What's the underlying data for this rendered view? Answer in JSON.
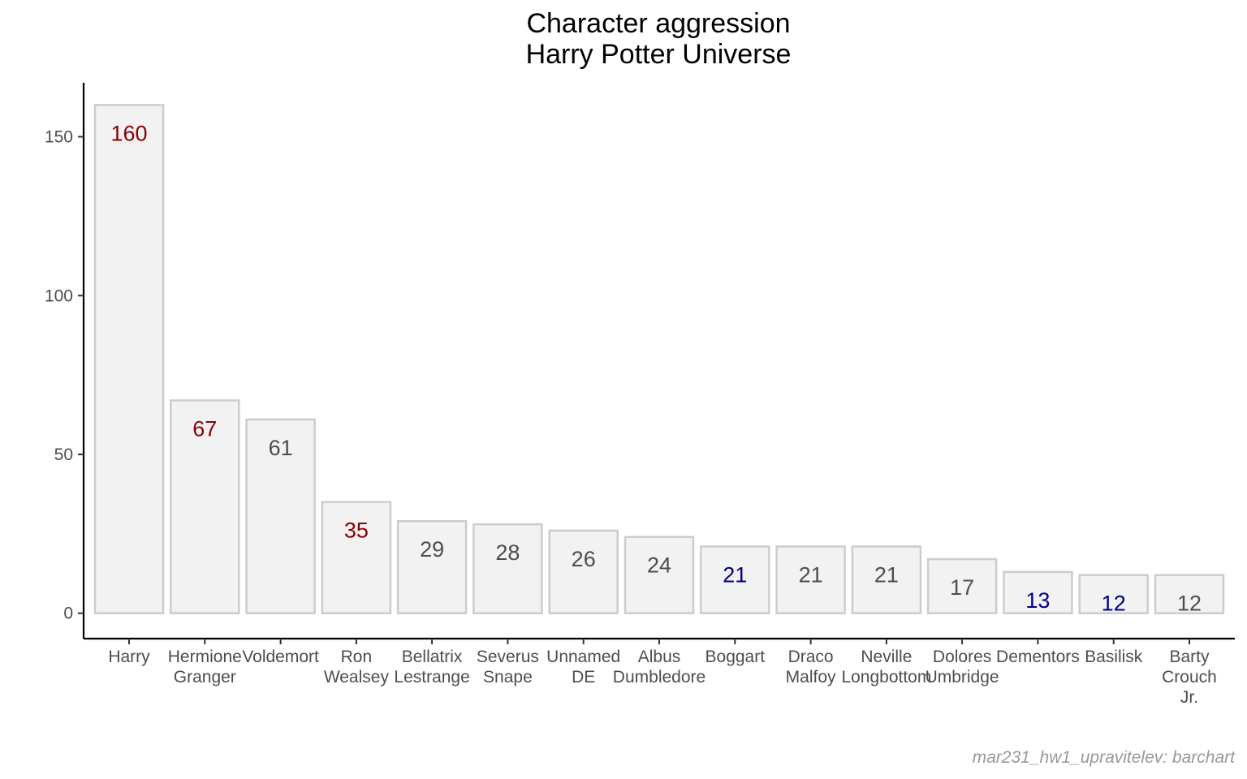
{
  "chart_data": {
    "type": "bar",
    "title": "Character aggression",
    "subtitle": "Harry Potter Universe",
    "caption": "mar231_hw1_upravitelev: barchart",
    "xlabel": "",
    "ylabel": "",
    "ylim": [
      -8,
      167
    ],
    "yticks": [
      0,
      50,
      100,
      150
    ],
    "grid": false,
    "categories": [
      "Harry",
      "Hermione Granger",
      "Voldemort",
      "Ron Wealsey",
      "Bellatrix Lestrange",
      "Severus Snape",
      "Unnamed DE",
      "Albus Dumbledore",
      "Boggart",
      "Draco Malfoy",
      "Neville Longbottom",
      "Dolores Umbridge",
      "Dementors",
      "Basilisk",
      "Barty Crouch Jr."
    ],
    "category_label_lines": [
      [
        "Harry"
      ],
      [
        "Hermione",
        "Granger"
      ],
      [
        "Voldemort"
      ],
      [
        "Ron",
        "Wealsey"
      ],
      [
        "Bellatrix",
        "Lestrange"
      ],
      [
        "Severus",
        "Snape"
      ],
      [
        "Unnamed",
        "DE"
      ],
      [
        "Albus",
        "Dumbledore"
      ],
      [
        "Boggart"
      ],
      [
        "Draco",
        "Malfoy"
      ],
      [
        "Neville",
        "Longbottom"
      ],
      [
        "Dolores",
        "Umbridge"
      ],
      [
        "Dementors"
      ],
      [
        "Basilisk"
      ],
      [
        "Barty",
        "Crouch",
        "Jr."
      ]
    ],
    "values": [
      160,
      67,
      61,
      35,
      29,
      28,
      26,
      24,
      21,
      21,
      21,
      17,
      13,
      12,
      12
    ],
    "label_colors": [
      "#8b0000",
      "#8b0000",
      "#4d4d4d",
      "#8b0000",
      "#4d4d4d",
      "#4d4d4d",
      "#4d4d4d",
      "#4d4d4d",
      "#00008b",
      "#4d4d4d",
      "#4d4d4d",
      "#4d4d4d",
      "#00008b",
      "#00008b",
      "#4d4d4d"
    ],
    "bar_fill": "#f2f2f2",
    "bar_stroke": "#cccccc"
  }
}
